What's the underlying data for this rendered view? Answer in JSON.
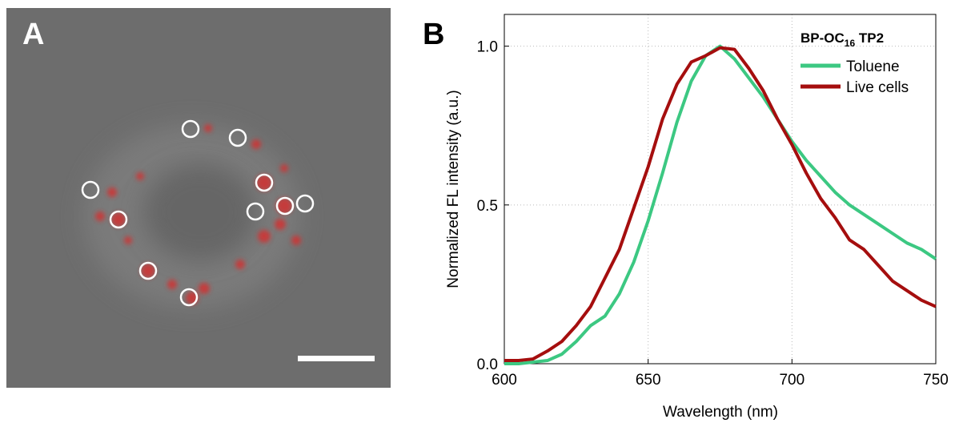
{
  "panel_labels": {
    "a": "A",
    "b": "B"
  },
  "chart_data": {
    "type": "line",
    "x_label": "Wavelength (nm)",
    "y_label": "Normalized FL intensity (a.u.)",
    "legend_title": [
      "BP-OC",
      "16",
      " TP2"
    ],
    "legend": "upper right",
    "grid": true,
    "xlim": [
      600,
      750
    ],
    "xticks": [
      600,
      650,
      700,
      750
    ],
    "ylim": [
      0,
      1.1
    ],
    "yticks": [
      {
        "value": 0,
        "label": "0.0"
      },
      0.5,
      {
        "value": 1,
        "label": "1.0"
      }
    ],
    "x": [
      600,
      605,
      610,
      615,
      620,
      625,
      630,
      635,
      640,
      645,
      650,
      655,
      660,
      665,
      670,
      675,
      680,
      685,
      690,
      695,
      700,
      705,
      710,
      715,
      720,
      725,
      730,
      735,
      740,
      745,
      750
    ],
    "series": [
      {
        "name": "Toluene",
        "color": "#3cc882",
        "values": [
          0,
          0,
          0.005,
          0.01,
          0.03,
          0.07,
          0.12,
          0.15,
          0.22,
          0.32,
          0.45,
          0.6,
          0.76,
          0.89,
          0.97,
          1.0,
          0.96,
          0.9,
          0.84,
          0.77,
          0.7,
          0.64,
          0.59,
          0.54,
          0.5,
          0.47,
          0.44,
          0.41,
          0.38,
          0.36,
          0.33
        ]
      },
      {
        "name": "Live cells",
        "color": "#a50e0e",
        "values": [
          0.01,
          0.01,
          0.015,
          0.04,
          0.07,
          0.12,
          0.18,
          0.27,
          0.36,
          0.49,
          0.62,
          0.77,
          0.88,
          0.95,
          0.97,
          0.995,
          0.99,
          0.93,
          0.86,
          0.77,
          0.69,
          0.6,
          0.52,
          0.46,
          0.39,
          0.36,
          0.31,
          0.26,
          0.23,
          0.2,
          0.18
        ]
      }
    ]
  }
}
